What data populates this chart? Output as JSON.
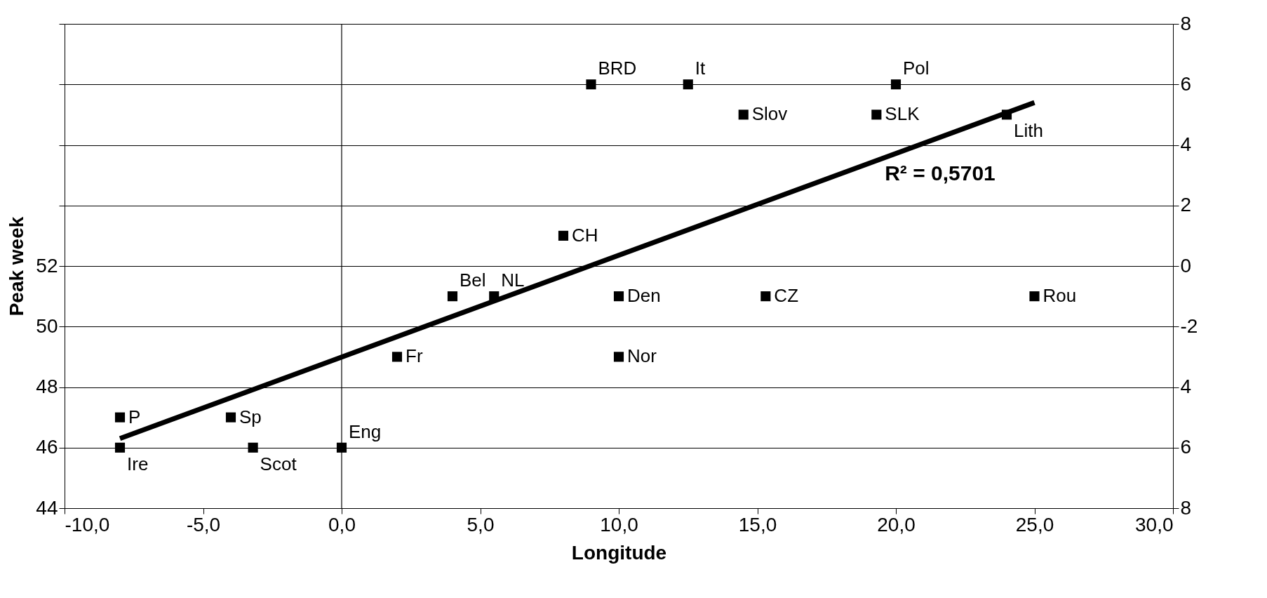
{
  "chart_data": {
    "type": "scatter",
    "xlabel": "Longitude",
    "ylabel": "Peak week",
    "xlim": [
      -10,
      30
    ],
    "ylim": [
      44,
      60
    ],
    "y2lim": [
      -8,
      8
    ],
    "xticks": [
      {
        "value": -10,
        "label": "-10,0"
      },
      {
        "value": -5,
        "label": "-5,0"
      },
      {
        "value": 0,
        "label": "0,0"
      },
      {
        "value": 5,
        "label": "5,0"
      },
      {
        "value": 10,
        "label": "10,0"
      },
      {
        "value": 15,
        "label": "15,0"
      },
      {
        "value": 20,
        "label": "20,0"
      },
      {
        "value": 25,
        "label": "25,0"
      },
      {
        "value": 30,
        "label": "30,0"
      }
    ],
    "yticks": [
      44,
      46,
      48,
      50,
      52,
      {
        "value": 54,
        "label": null
      },
      {
        "value": 56,
        "label": null
      },
      {
        "value": 58,
        "label": null
      },
      {
        "value": 60,
        "label": null
      }
    ],
    "y2ticks": [
      8,
      6,
      4,
      2,
      0,
      -2,
      {
        "value": -4,
        "label": "4"
      },
      {
        "value": -6,
        "label": "6"
      },
      {
        "value": -8,
        "label": "8"
      }
    ],
    "grid": "y",
    "ref_lines": [
      {
        "axis": "x",
        "value": 0
      }
    ],
    "series": [
      {
        "marker": "square",
        "color": "#000000",
        "x": [
          9.0,
          12.5,
          20.0,
          14.5,
          19.3,
          24.0,
          8.0,
          4.0,
          5.5,
          10.0,
          15.3,
          25.0,
          2.0,
          10.0,
          -8.0,
          -4.0,
          -8.0,
          -3.2,
          0.0
        ],
        "values": [
          58,
          58,
          58,
          57,
          57,
          57,
          53,
          51,
          51,
          51,
          51,
          51,
          49,
          49,
          47,
          47,
          46,
          46,
          46
        ]
      },
      {
        "type": "line",
        "color": "#000000",
        "line_style": "solid",
        "x": [
          -8.0,
          25.0
        ],
        "values": [
          46.3,
          57.4
        ]
      }
    ],
    "annotations": [
      {
        "text": "BRD",
        "x": 9.0,
        "y": 58
      },
      {
        "text": "It",
        "x": 12.5,
        "y": 58
      },
      {
        "text": "Pol",
        "x": 20.0,
        "y": 58
      },
      {
        "text": "Slov",
        "x": 14.5,
        "y": 57
      },
      {
        "text": "SLK",
        "x": 19.3,
        "y": 57
      },
      {
        "text": "Lith",
        "x": 24.0,
        "y": 57
      },
      {
        "text": "CH",
        "x": 8.0,
        "y": 53
      },
      {
        "text": "Bel",
        "x": 4.0,
        "y": 51
      },
      {
        "text": "NL",
        "x": 5.5,
        "y": 51
      },
      {
        "text": "Den",
        "x": 10.0,
        "y": 51
      },
      {
        "text": "CZ",
        "x": 15.3,
        "y": 51
      },
      {
        "text": "Rou",
        "x": 25.0,
        "y": 51
      },
      {
        "text": "Fr",
        "x": 2.0,
        "y": 49
      },
      {
        "text": "Nor",
        "x": 10.0,
        "y": 49
      },
      {
        "text": "P",
        "x": -8.0,
        "y": 47
      },
      {
        "text": "Sp",
        "x": -4.0,
        "y": 47
      },
      {
        "text": "Ire",
        "x": -8.0,
        "y": 46
      },
      {
        "text": "Scot",
        "x": -3.2,
        "y": 46
      },
      {
        "text": "Eng",
        "x": 0.0,
        "y": 46
      },
      "R² = 0,5701"
    ]
  }
}
